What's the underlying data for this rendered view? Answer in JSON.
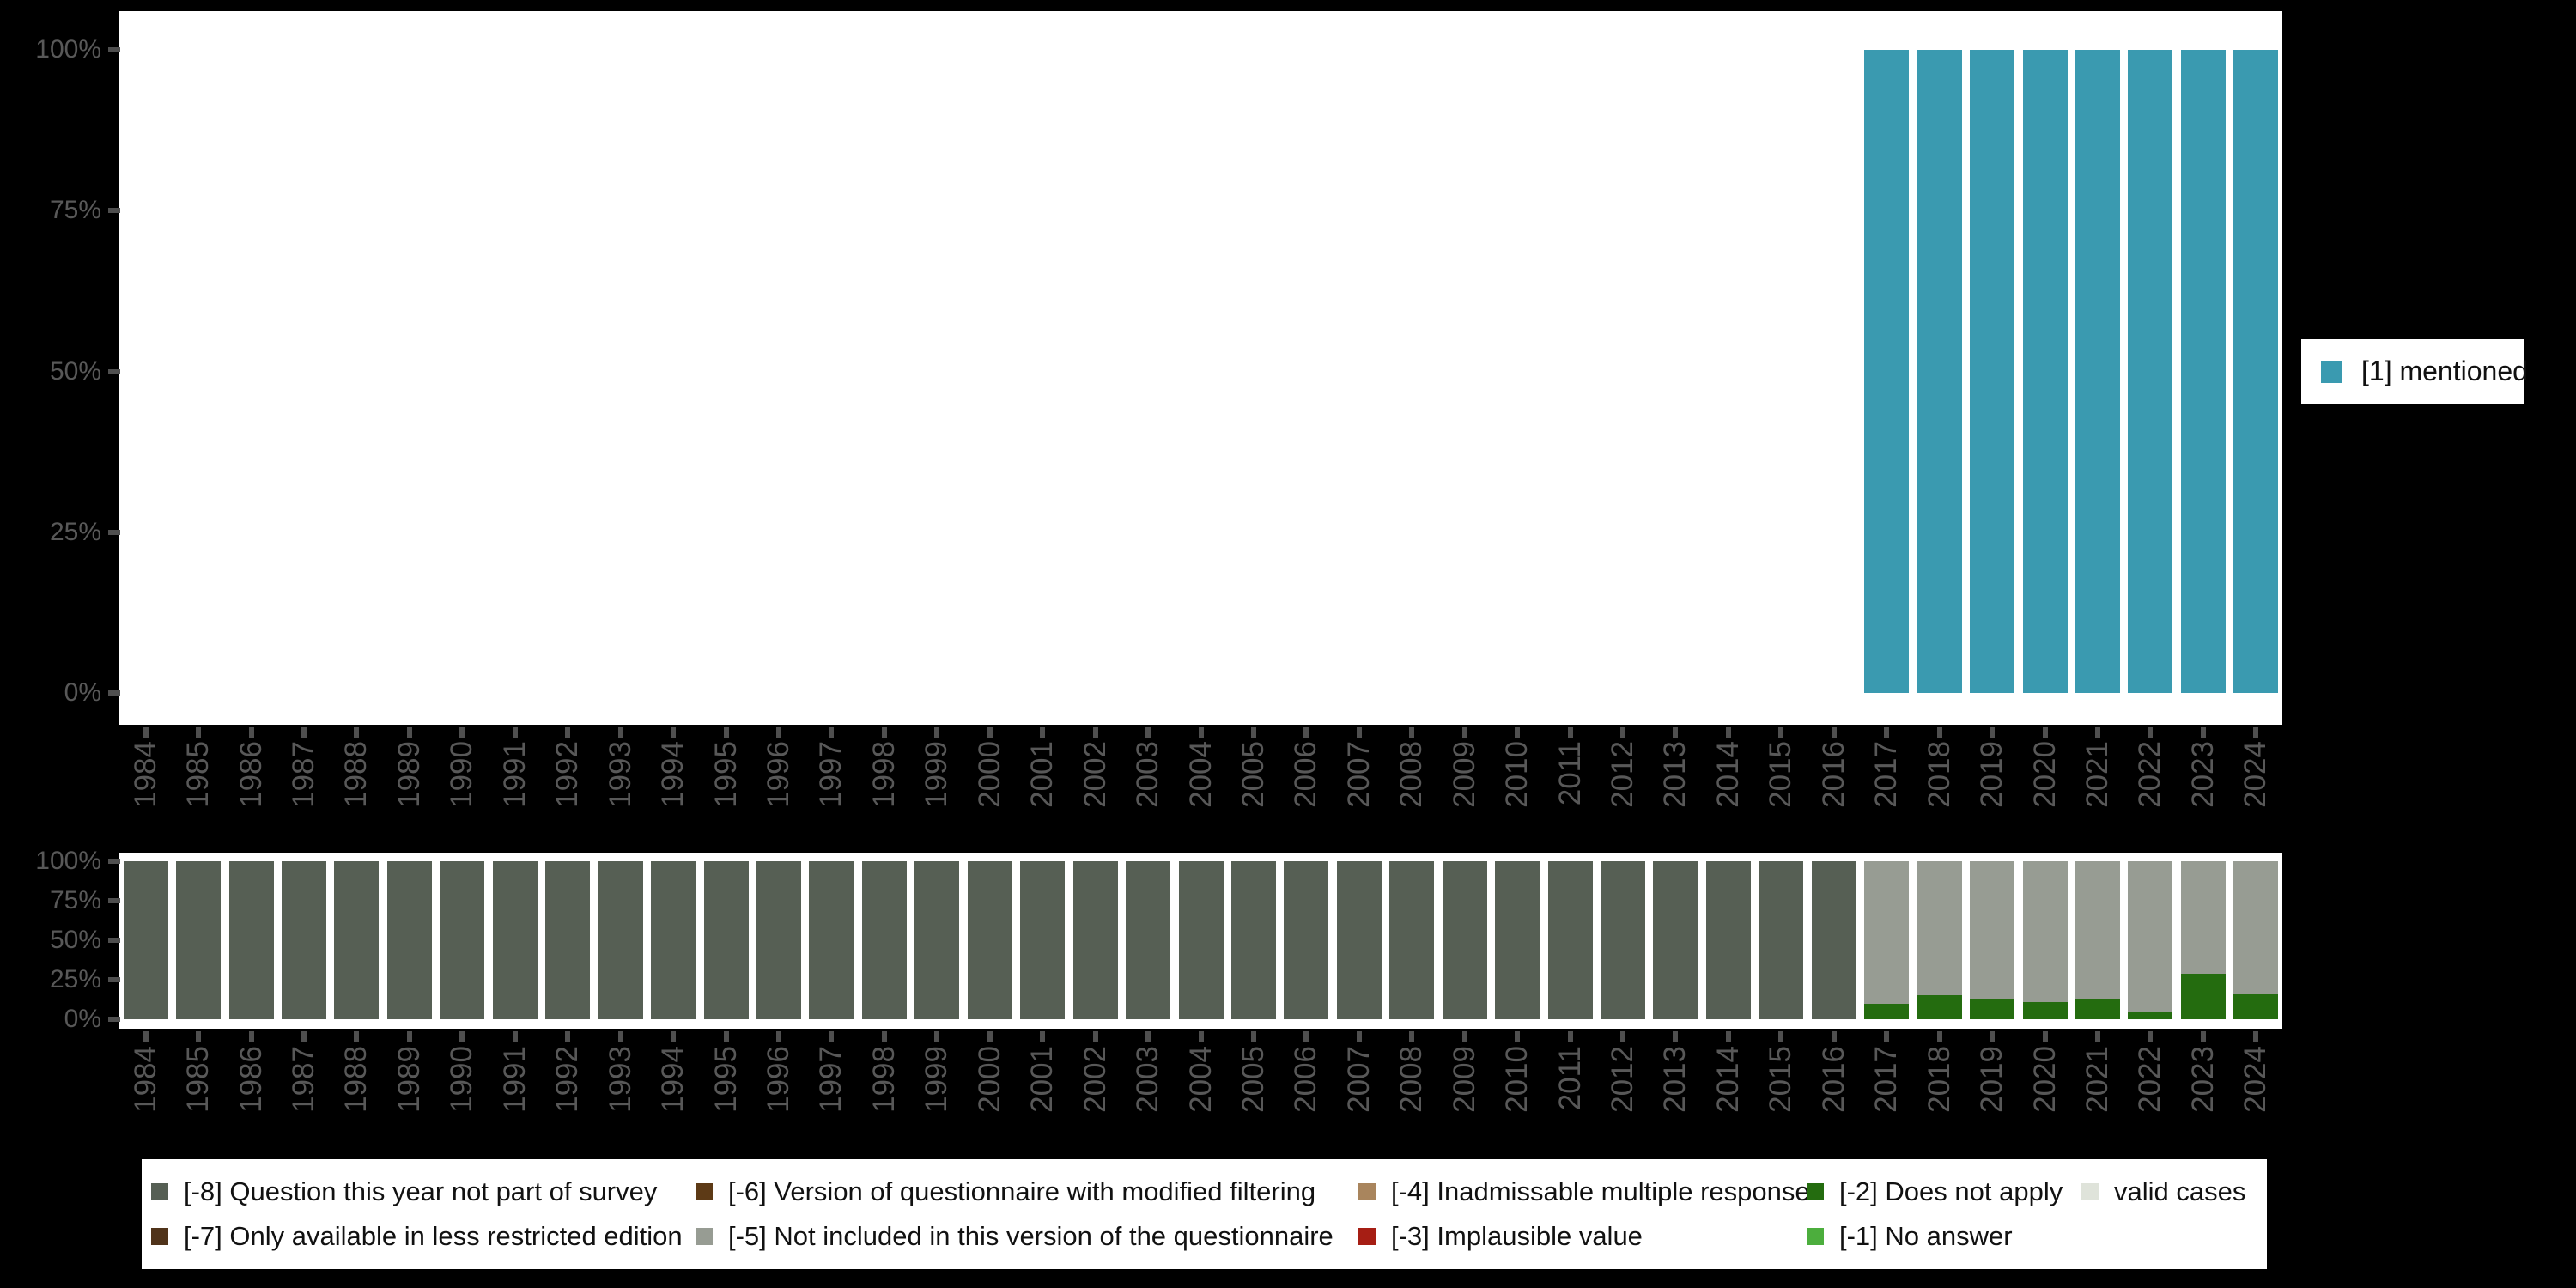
{
  "colors": {
    "background": "#000000",
    "panel": "#ffffff",
    "axis_text": "#585858",
    "tick": "#4f4f4f",
    "legend_text": "#111111"
  },
  "chart_data": [
    {
      "id": "valid-responses-by-year",
      "type": "bar",
      "stacked": true,
      "title": "",
      "xlabel": "",
      "ylabel": "",
      "ylim": [
        0,
        100
      ],
      "grid": false,
      "y_tick_labels": [
        "0%",
        "25%",
        "50%",
        "75%",
        "100%"
      ],
      "legend_position": "right",
      "categories": [
        1984,
        1985,
        1986,
        1987,
        1988,
        1989,
        1990,
        1991,
        1992,
        1993,
        1994,
        1995,
        1996,
        1997,
        1998,
        1999,
        2000,
        2001,
        2002,
        2003,
        2004,
        2005,
        2006,
        2007,
        2008,
        2009,
        2010,
        2011,
        2012,
        2013,
        2014,
        2015,
        2016,
        2017,
        2018,
        2019,
        2020,
        2021,
        2022,
        2023,
        2024
      ],
      "series": [
        {
          "name": "[1] mentioned",
          "color": "#3a9ab0",
          "values": [
            0,
            0,
            0,
            0,
            0,
            0,
            0,
            0,
            0,
            0,
            0,
            0,
            0,
            0,
            0,
            0,
            0,
            0,
            0,
            0,
            0,
            0,
            0,
            0,
            0,
            0,
            0,
            0,
            0,
            0,
            0,
            0,
            0,
            100,
            100,
            100,
            100,
            100,
            100,
            100,
            100
          ]
        }
      ],
      "legend_items": [
        {
          "label": "[1] mentioned",
          "color": "#3a9ab0"
        }
      ]
    },
    {
      "id": "missing-values-by-year",
      "type": "bar",
      "stacked": true,
      "title": "",
      "xlabel": "",
      "ylabel": "",
      "ylim": [
        0,
        100
      ],
      "grid": false,
      "y_tick_labels": [
        "0%",
        "25%",
        "50%",
        "75%",
        "100%"
      ],
      "legend_position": "bottom",
      "categories": [
        1984,
        1985,
        1986,
        1987,
        1988,
        1989,
        1990,
        1991,
        1992,
        1993,
        1994,
        1995,
        1996,
        1997,
        1998,
        1999,
        2000,
        2001,
        2002,
        2003,
        2004,
        2005,
        2006,
        2007,
        2008,
        2009,
        2010,
        2011,
        2012,
        2013,
        2014,
        2015,
        2016,
        2017,
        2018,
        2019,
        2020,
        2021,
        2022,
        2023,
        2024
      ],
      "series": [
        {
          "name": "[-2] Does not apply",
          "color": "#246c0f",
          "values": [
            0,
            0,
            0,
            0,
            0,
            0,
            0,
            0,
            0,
            0,
            0,
            0,
            0,
            0,
            0,
            0,
            0,
            0,
            0,
            0,
            0,
            0,
            0,
            0,
            0,
            0,
            0,
            0,
            0,
            0,
            0,
            0,
            0,
            10,
            15,
            13,
            11,
            13,
            5,
            29,
            16
          ]
        },
        {
          "name": "[-5] Not included in this version of the questionnaire",
          "color": "#979c93",
          "values": [
            0,
            0,
            0,
            0,
            0,
            0,
            0,
            0,
            0,
            0,
            0,
            0,
            0,
            0,
            0,
            0,
            0,
            0,
            0,
            0,
            0,
            0,
            0,
            0,
            0,
            0,
            0,
            0,
            0,
            0,
            0,
            0,
            0,
            90,
            85,
            87,
            89,
            87,
            95,
            71,
            84
          ]
        },
        {
          "name": "[-8] Question this year not part of survey",
          "color": "#565f54",
          "values": [
            100,
            100,
            100,
            100,
            100,
            100,
            100,
            100,
            100,
            100,
            100,
            100,
            100,
            100,
            100,
            100,
            100,
            100,
            100,
            100,
            100,
            100,
            100,
            100,
            100,
            100,
            100,
            100,
            100,
            100,
            100,
            100,
            100,
            0,
            0,
            0,
            0,
            0,
            0,
            0,
            0
          ]
        }
      ],
      "legend_items": [
        {
          "label": "[-8] Question this year not part of survey",
          "color": "#565f54"
        },
        {
          "label": "[-7] Only available in less restricted edition",
          "color": "#50331a"
        },
        {
          "label": "[-6] Version of questionnaire with modified filtering",
          "color": "#5d3a16"
        },
        {
          "label": "[-5] Not included in this version of the questionnaire",
          "color": "#979c93"
        },
        {
          "label": "[-4] Inadmissable multiple response",
          "color": "#a9855d"
        },
        {
          "label": "[-3] Implausible value",
          "color": "#a61e14"
        },
        {
          "label": "[-2] Does not apply",
          "color": "#246c0f"
        },
        {
          "label": "[-1] No answer",
          "color": "#4cae3d"
        },
        {
          "label": "valid cases",
          "color": "#dfe3da"
        }
      ]
    }
  ]
}
